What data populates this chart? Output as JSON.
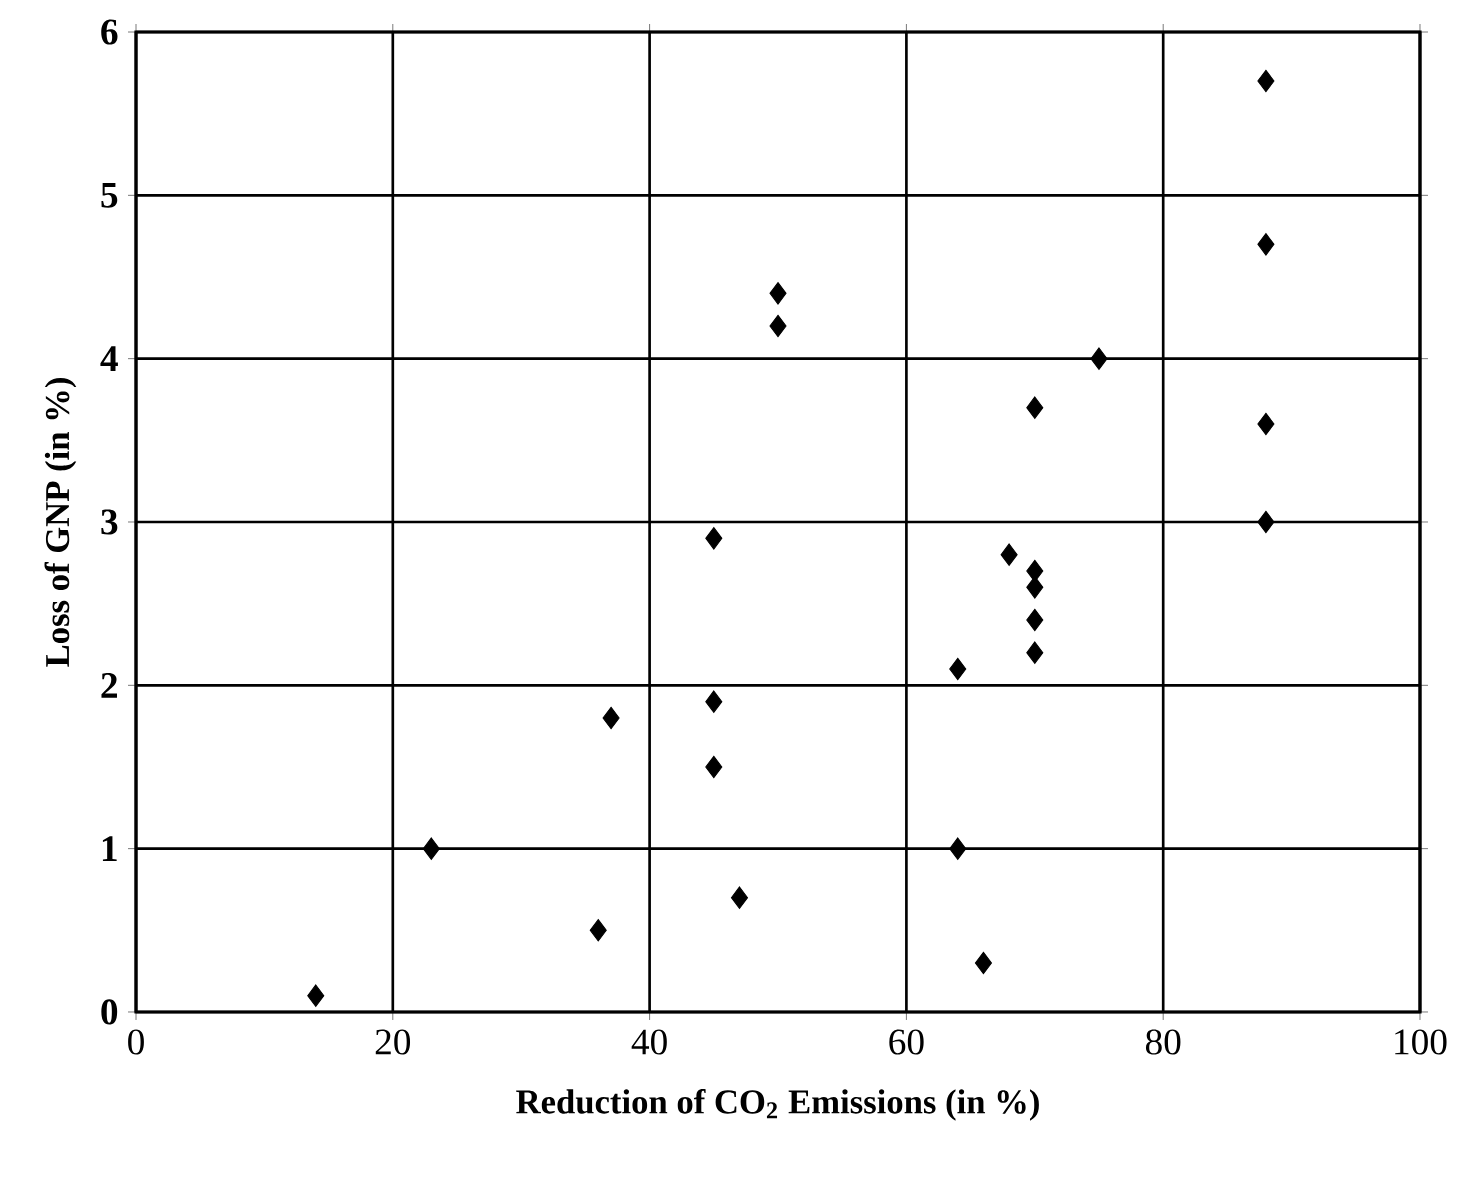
{
  "chart_data": {
    "type": "scatter",
    "xlabel": "Reduction of CO$_{2}$ Emissions (in %)",
    "ylabel": "Loss of GNP (in %)",
    "x": [
      14,
      23,
      36,
      37,
      45,
      45,
      45,
      47,
      50,
      50,
      64,
      64,
      66,
      68,
      70,
      70,
      70,
      70,
      70,
      75,
      88,
      88,
      88,
      88
    ],
    "values": [
      0.1,
      1.0,
      0.5,
      1.8,
      2.9,
      1.9,
      1.5,
      0.7,
      4.4,
      4.2,
      2.1,
      1.0,
      0.3,
      2.8,
      2.7,
      2.6,
      2.4,
      2.2,
      3.7,
      4.0,
      5.7,
      4.7,
      3.6,
      3.0
    ],
    "color": "#000000",
    "marker": "diamond",
    "xlim": [
      0,
      100
    ],
    "ylim": [
      0,
      6
    ],
    "xticks": [
      0,
      20,
      40,
      60,
      80,
      100
    ],
    "yticks": [
      0,
      1,
      2,
      3,
      4,
      5,
      6
    ],
    "grid": true
  }
}
